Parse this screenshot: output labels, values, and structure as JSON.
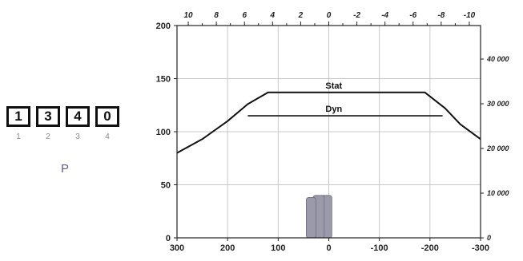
{
  "code": {
    "digits": [
      "1",
      "3",
      "4",
      "0"
    ],
    "indexes": [
      "1",
      "2",
      "3",
      "4"
    ],
    "letter": "P"
  },
  "chart_data": {
    "type": "line",
    "title": "",
    "xlabel": "",
    "ylabel": "",
    "x_bottom": {
      "ticks": [
        300,
        200,
        100,
        0,
        -100,
        -200,
        -300
      ],
      "lim": [
        300,
        -300
      ]
    },
    "x_top": {
      "ticks": [
        10,
        8,
        6,
        4,
        2,
        0,
        -2,
        -4,
        -6,
        -8,
        -10
      ],
      "labels": [
        "10",
        "8",
        "6",
        "4",
        "2",
        "0",
        "-2",
        "-4",
        "-6",
        "-8",
        "-10"
      ],
      "lim": [
        10.8,
        -10.8
      ]
    },
    "y_left": {
      "ticks": [
        0,
        50,
        100,
        150,
        200
      ],
      "lim": [
        0,
        200
      ]
    },
    "y_right": {
      "ticks": [
        0,
        10000,
        20000,
        30000,
        40000
      ],
      "labels": [
        "0",
        "10 000",
        "20 000",
        "30 000",
        "40 000"
      ],
      "lim": [
        0,
        47500
      ]
    },
    "grid": true,
    "series": [
      {
        "name": "Stat",
        "color": "#111111",
        "x": [
          300,
          250,
          200,
          160,
          120,
          0,
          -190,
          -230,
          -260,
          -300
        ],
        "y": [
          80,
          93,
          110,
          126,
          137,
          137,
          137,
          122,
          107,
          93
        ]
      },
      {
        "name": "Dyn",
        "color": "#111111",
        "x": [
          160,
          0,
          -225
        ],
        "y": [
          115,
          115,
          115
        ]
      }
    ],
    "shape": {
      "name": "machine-silhouette",
      "color": "#9a9aaa",
      "x": [
        5,
        20,
        35
      ],
      "height": [
        40,
        40,
        38
      ]
    }
  }
}
